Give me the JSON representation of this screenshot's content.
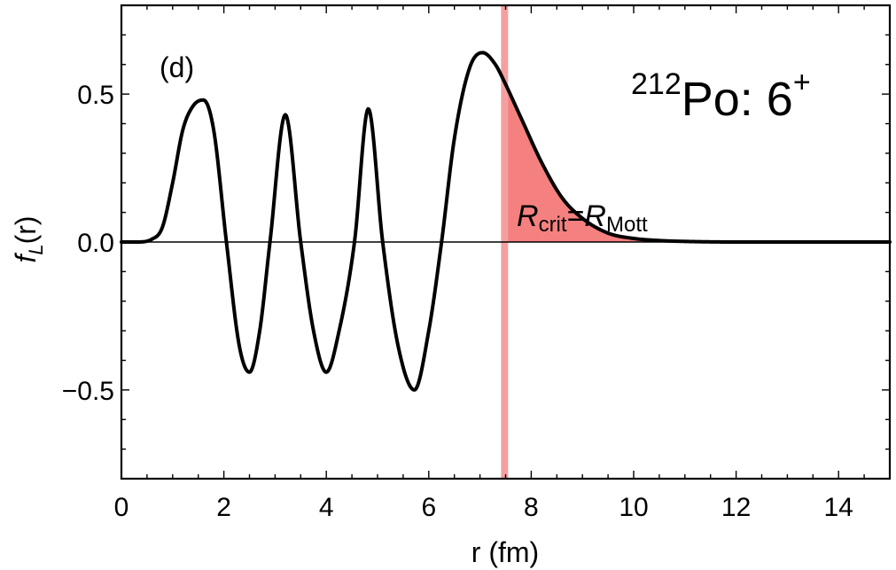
{
  "chart_data": {
    "type": "line",
    "panel_label": "(d)",
    "title": {
      "mass_number": "212",
      "nucleus": "Po: 6",
      "parity": "+"
    },
    "xlabel": "r (fm)",
    "ylabel": {
      "f": "f",
      "sub": "L",
      "rest": "(r)"
    },
    "xlim": [
      0,
      15
    ],
    "ylim": [
      -0.8,
      0.8
    ],
    "x_ticks": [
      0,
      2,
      4,
      6,
      8,
      10,
      12,
      14
    ],
    "y_ticks": [
      -0.5,
      0.0,
      0.5
    ],
    "y_tick_labels": [
      "−0.5",
      "0.0",
      "0.5"
    ],
    "grid": false,
    "colors": {
      "curve": "#000000",
      "band": "#f4a0a0",
      "fill": "#f58080"
    },
    "series": [
      {
        "x": [
          0,
          0.3,
          0.6,
          0.8,
          1.0,
          1.2,
          1.4,
          1.6,
          1.8,
          2.05,
          2.3,
          2.5,
          2.7,
          2.9,
          3.2,
          3.5,
          3.75,
          4.0,
          4.25,
          4.55,
          4.82,
          5.1,
          5.4,
          5.72,
          6.0,
          6.25,
          6.5,
          6.8,
          7.05,
          7.3,
          7.48,
          7.8,
          8.2,
          8.6,
          9.0,
          9.5,
          10.0,
          10.5,
          11.0,
          12.0,
          13.0,
          14.0,
          15.0
        ],
        "y": [
          0.0,
          0.0,
          0.01,
          0.05,
          0.2,
          0.38,
          0.46,
          0.48,
          0.38,
          0.0,
          -0.35,
          -0.44,
          -0.3,
          0.0,
          0.43,
          0.0,
          -0.3,
          -0.44,
          -0.3,
          0.0,
          0.45,
          0.0,
          -0.35,
          -0.5,
          -0.3,
          0.0,
          0.35,
          0.59,
          0.64,
          0.6,
          0.54,
          0.42,
          0.27,
          0.15,
          0.08,
          0.03,
          0.012,
          0.005,
          0.002,
          0.0,
          0.0,
          0.0,
          0.0
        ]
      }
    ],
    "critical_radius": {
      "r": 7.48,
      "label": {
        "a": "R",
        "a_sub": "crit",
        "eq": "=",
        "b": "R",
        "b_sub": "Mott"
      }
    }
  }
}
